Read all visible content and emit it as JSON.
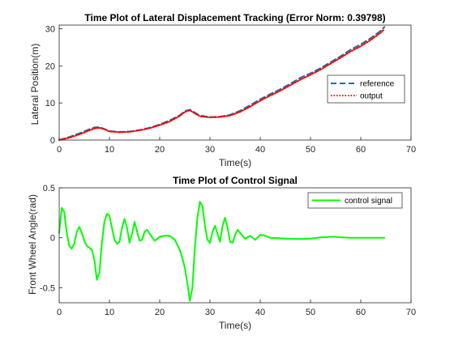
{
  "chart_data": [
    {
      "type": "line",
      "title": "Time Plot of Lateral Displacement Tracking (Error Norm: 0.39798)",
      "xlabel": "Time(s)",
      "ylabel": "Lateral Position(m)",
      "xlim": [
        0,
        70
      ],
      "ylim": [
        0,
        31
      ],
      "xticks": [
        0,
        10,
        20,
        30,
        40,
        50,
        60,
        70
      ],
      "yticks": [
        0,
        10,
        20,
        30
      ],
      "grid": false,
      "legend_position": "right",
      "series": [
        {
          "name": "reference",
          "color": "#1f6ba5",
          "style": "dashed",
          "x": [
            0,
            2,
            4,
            6,
            7,
            8,
            9,
            10,
            12,
            14,
            16,
            18,
            20,
            22,
            24,
            25,
            26,
            27,
            28,
            30,
            32,
            34,
            36,
            38,
            40,
            42,
            44,
            46,
            48,
            50,
            52,
            54,
            56,
            58,
            60,
            62,
            64,
            64.7
          ],
          "y": [
            0,
            0.8,
            1.8,
            2.9,
            3.4,
            3.5,
            3.0,
            2.4,
            2.2,
            2.3,
            2.7,
            3.3,
            4.2,
            5.3,
            6.7,
            7.8,
            8.2,
            7.4,
            6.6,
            6.2,
            6.3,
            6.8,
            7.9,
            9.4,
            11.0,
            12.4,
            13.7,
            15.2,
            16.8,
            18.0,
            19.4,
            21.0,
            22.6,
            24.4,
            25.8,
            27.5,
            29.5,
            30.5
          ]
        },
        {
          "name": "output",
          "color": "#ff0000",
          "style": "dotted",
          "x": [
            0,
            2,
            4,
            6,
            7,
            8,
            9,
            10,
            12,
            14,
            16,
            18,
            20,
            22,
            24,
            25,
            26,
            27,
            28,
            30,
            32,
            34,
            36,
            38,
            40,
            42,
            44,
            46,
            48,
            50,
            52,
            54,
            56,
            58,
            60,
            62,
            64,
            64.7
          ],
          "y": [
            0,
            0.6,
            1.5,
            2.6,
            3.1,
            3.3,
            2.9,
            2.3,
            2.1,
            2.2,
            2.6,
            3.2,
            4.0,
            5.0,
            6.5,
            7.6,
            8.0,
            7.2,
            6.4,
            6.1,
            6.2,
            6.6,
            7.6,
            9.0,
            10.6,
            12.0,
            13.3,
            14.8,
            16.3,
            17.6,
            19.0,
            20.6,
            22.2,
            23.9,
            25.3,
            27.0,
            29.0,
            29.9
          ]
        }
      ]
    },
    {
      "type": "line",
      "title": "Time Plot of Control Signal",
      "xlabel": "Time(s)",
      "ylabel": "Front Wheel Angle(rad)",
      "xlim": [
        0,
        70
      ],
      "ylim": [
        -0.65,
        0.5
      ],
      "xticks": [
        0,
        10,
        20,
        30,
        40,
        50,
        60,
        70
      ],
      "yticks": [
        -0.5,
        0,
        0.5
      ],
      "ytick_labels": [
        "-0.5",
        "0",
        "0.5"
      ],
      "grid": false,
      "legend_position": "top-right",
      "series": [
        {
          "name": "control signal",
          "color": "#00ff00",
          "style": "solid",
          "x": [
            0,
            0.5,
            1,
            1.5,
            2,
            2.5,
            3,
            3.5,
            4,
            4.5,
            5,
            5.5,
            6,
            6.5,
            7,
            7.5,
            8,
            8.5,
            9,
            9.5,
            10,
            10.5,
            11,
            11.5,
            12,
            12.5,
            13,
            13.5,
            14,
            14.5,
            15,
            15.5,
            16,
            16.5,
            17,
            17.5,
            18,
            19,
            20,
            21,
            22,
            23,
            24,
            24.5,
            25,
            25.5,
            26,
            26.5,
            27,
            27.5,
            28,
            28.5,
            29,
            29.5,
            30,
            30.5,
            31,
            31.5,
            32,
            32.5,
            33,
            33.5,
            34,
            34.5,
            35,
            35.5,
            36,
            37,
            38,
            39,
            40,
            41,
            42,
            44,
            46,
            48,
            50,
            52,
            54,
            55,
            56,
            58,
            60,
            62,
            64,
            64.7
          ],
          "y": [
            0.05,
            0.3,
            0.26,
            0.05,
            -0.08,
            -0.11,
            -0.06,
            0.06,
            0.11,
            0.05,
            -0.03,
            -0.08,
            -0.1,
            -0.12,
            -0.22,
            -0.42,
            -0.35,
            -0.05,
            0.16,
            0.24,
            0.22,
            0.1,
            -0.02,
            -0.06,
            -0.04,
            0.1,
            0.19,
            0.1,
            -0.05,
            0.04,
            0.16,
            0.06,
            -0.03,
            -0.02,
            0.06,
            0.08,
            0.04,
            -0.03,
            0.01,
            0.02,
            0.02,
            -0.02,
            -0.12,
            -0.2,
            -0.3,
            -0.45,
            -0.63,
            -0.5,
            -0.1,
            0.2,
            0.36,
            0.32,
            0.12,
            -0.02,
            -0.05,
            0.06,
            0.12,
            0.04,
            -0.04,
            0.12,
            0.2,
            0.1,
            -0.04,
            -0.05,
            0.03,
            0.08,
            0.05,
            -0.01,
            0.02,
            -0.02,
            0.03,
            0.02,
            0,
            -0.005,
            -0.01,
            -0.012,
            -0.008,
            0.004,
            0.01,
            0.01,
            0.005,
            0,
            0,
            0,
            0,
            0
          ]
        }
      ]
    }
  ]
}
